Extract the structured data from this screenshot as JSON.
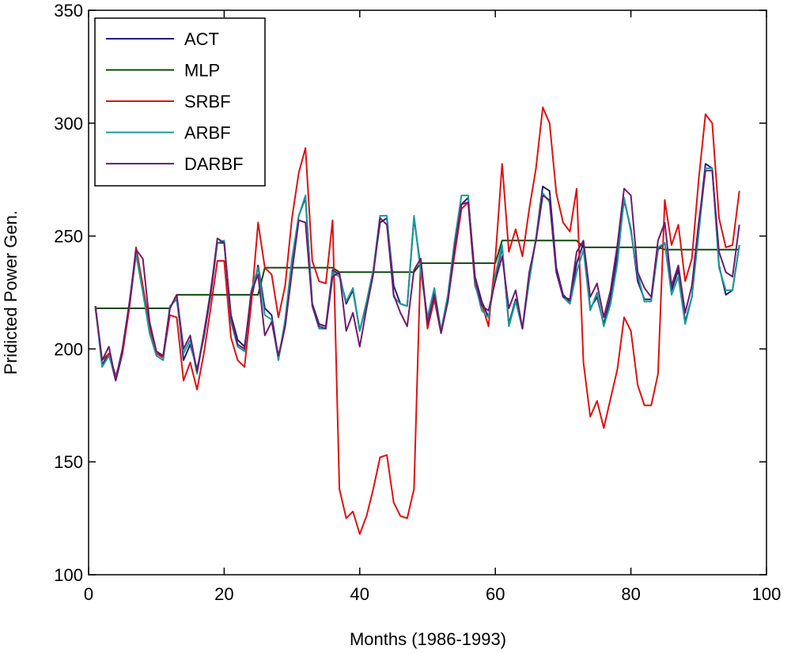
{
  "chart_data": {
    "type": "line",
    "title": "",
    "xlabel": "Months (1986-1993)",
    "ylabel": "Pridicted Power Gen.",
    "xlim": [
      0,
      100
    ],
    "ylim": [
      100,
      350
    ],
    "xticks": [
      0,
      20,
      40,
      60,
      80,
      100
    ],
    "yticks": [
      100,
      150,
      200,
      250,
      300,
      350
    ],
    "grid": false,
    "legend_position": "top-left",
    "x": [
      1,
      2,
      3,
      4,
      5,
      6,
      7,
      8,
      9,
      10,
      11,
      12,
      13,
      14,
      15,
      16,
      17,
      18,
      19,
      20,
      21,
      22,
      23,
      24,
      25,
      26,
      27,
      28,
      29,
      30,
      31,
      32,
      33,
      34,
      35,
      36,
      37,
      38,
      39,
      40,
      41,
      42,
      43,
      44,
      45,
      46,
      47,
      48,
      49,
      50,
      51,
      52,
      53,
      54,
      55,
      56,
      57,
      58,
      59,
      60,
      61,
      62,
      63,
      64,
      65,
      66,
      67,
      68,
      69,
      70,
      71,
      72,
      73,
      74,
      75,
      76,
      77,
      78,
      79,
      80,
      81,
      82,
      83,
      84,
      85,
      86,
      87,
      88,
      89,
      90,
      91,
      92,
      93,
      94,
      95,
      96
    ],
    "series": [
      {
        "name": "ACT",
        "color": "#1f1f7a",
        "values": [
          219,
          193,
          198,
          186,
          198,
          218,
          242,
          226,
          208,
          198,
          197,
          218,
          224,
          195,
          202,
          191,
          205,
          224,
          247,
          247,
          215,
          204,
          201,
          222,
          237,
          218,
          215,
          196,
          210,
          235,
          259,
          267,
          220,
          211,
          210,
          235,
          233,
          220,
          226,
          208,
          220,
          234,
          256,
          258,
          228,
          220,
          219,
          258,
          236,
          213,
          226,
          208,
          221,
          243,
          264,
          267,
          232,
          221,
          214,
          232,
          245,
          211,
          222,
          209,
          232,
          249,
          272,
          270,
          236,
          224,
          221,
          238,
          247,
          218,
          223,
          211,
          223,
          242,
          266,
          253,
          230,
          222,
          222,
          244,
          247,
          226,
          235,
          212,
          223,
          254,
          282,
          280,
          237,
          224,
          226,
          246
        ]
      },
      {
        "name": "MLP",
        "color": "#0c4a0c",
        "values": [
          218,
          218,
          218,
          218,
          218,
          218,
          218,
          218,
          218,
          218,
          218,
          218,
          224,
          224,
          224,
          224,
          224,
          224,
          224,
          224,
          224,
          224,
          224,
          224,
          224,
          236,
          236,
          236,
          236,
          236,
          236,
          236,
          236,
          236,
          236,
          236,
          234,
          234,
          234,
          234,
          234,
          234,
          234,
          234,
          234,
          234,
          234,
          234,
          238,
          238,
          238,
          238,
          238,
          238,
          238,
          238,
          238,
          238,
          238,
          238,
          248,
          248,
          248,
          248,
          248,
          248,
          248,
          248,
          248,
          248,
          248,
          248,
          245,
          245,
          245,
          245,
          245,
          245,
          245,
          245,
          245,
          245,
          245,
          245,
          244,
          244,
          244,
          244,
          244,
          244,
          244,
          244,
          244,
          244,
          244,
          244
        ]
      },
      {
        "name": "SRBF",
        "color": "#dd1111",
        "values": [
          218,
          195,
          198,
          188,
          198,
          218,
          245,
          228,
          210,
          198,
          196,
          215,
          214,
          186,
          194,
          182,
          198,
          218,
          239,
          239,
          205,
          195,
          192,
          220,
          256,
          236,
          233,
          214,
          228,
          258,
          278,
          289,
          239,
          230,
          229,
          257,
          138,
          125,
          128,
          118,
          126,
          138,
          152,
          153,
          132,
          126,
          125,
          138,
          240,
          209,
          222,
          207,
          222,
          242,
          262,
          265,
          228,
          220,
          210,
          240,
          282,
          243,
          253,
          241,
          262,
          280,
          307,
          300,
          269,
          256,
          252,
          271,
          194,
          170,
          177,
          165,
          178,
          191,
          214,
          208,
          184,
          175,
          175,
          189,
          266,
          246,
          255,
          230,
          240,
          275,
          304,
          300,
          258,
          245,
          246,
          270
        ]
      },
      {
        "name": "ARBF",
        "color": "#1a9a9a",
        "values": [
          219,
          192,
          197,
          187,
          200,
          220,
          242,
          225,
          207,
          197,
          195,
          219,
          222,
          198,
          204,
          189,
          206,
          226,
          247,
          248,
          212,
          201,
          199,
          226,
          236,
          215,
          213,
          195,
          213,
          240,
          259,
          268,
          219,
          209,
          209,
          234,
          232,
          221,
          227,
          208,
          221,
          235,
          259,
          259,
          223,
          220,
          219,
          259,
          234,
          214,
          227,
          208,
          224,
          248,
          268,
          268,
          229,
          217,
          214,
          233,
          246,
          210,
          221,
          209,
          230,
          249,
          269,
          265,
          234,
          223,
          220,
          234,
          244,
          217,
          225,
          210,
          220,
          238,
          267,
          252,
          233,
          221,
          221,
          245,
          247,
          224,
          232,
          211,
          223,
          251,
          280,
          280,
          236,
          226,
          226,
          246
        ]
      },
      {
        "name": "DARBF",
        "color": "#6f1a6f",
        "values": [
          219,
          195,
          201,
          186,
          200,
          220,
          244,
          240,
          212,
          199,
          197,
          218,
          224,
          200,
          206,
          190,
          207,
          225,
          249,
          247,
          214,
          202,
          200,
          225,
          233,
          206,
          212,
          197,
          210,
          234,
          257,
          256,
          219,
          210,
          209,
          232,
          234,
          208,
          216,
          201,
          218,
          233,
          258,
          255,
          224,
          216,
          210,
          235,
          240,
          211,
          224,
          207,
          221,
          245,
          264,
          265,
          231,
          219,
          217,
          230,
          241,
          218,
          226,
          209,
          234,
          248,
          268,
          266,
          234,
          223,
          222,
          243,
          248,
          223,
          229,
          214,
          226,
          246,
          271,
          268,
          234,
          227,
          223,
          248,
          256,
          228,
          237,
          216,
          228,
          256,
          279,
          279,
          243,
          234,
          232,
          255
        ]
      }
    ]
  }
}
